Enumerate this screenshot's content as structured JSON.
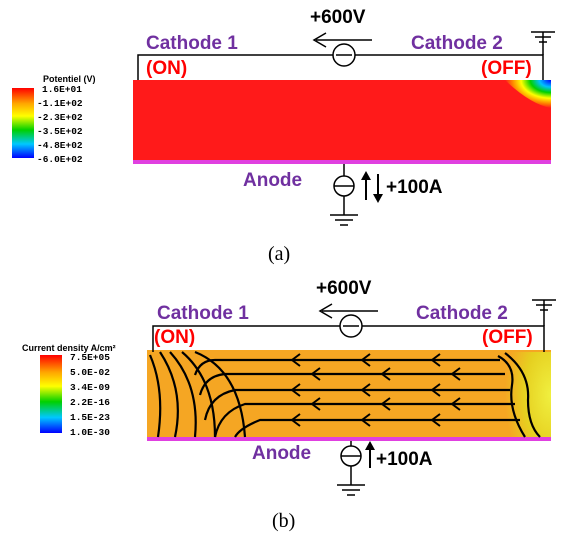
{
  "panel_a": {
    "voltage": "+600V",
    "cathode1": "Cathode 1",
    "cathode2": "Cathode 2",
    "cathode1_state": "(ON)",
    "cathode2_state": "(OFF)",
    "anode": "Anode",
    "current": "+100A",
    "caption": "(a)",
    "legend_title": "Potentiel (V)",
    "legend_ticks": [
      "1.6E+01",
      "-1.1E+02",
      "-2.3E+02",
      "-3.5E+02",
      "-4.8E+02",
      "-6.0E+02"
    ]
  },
  "panel_b": {
    "voltage": "+600V",
    "cathode1": "Cathode 1",
    "cathode2": "Cathode 2",
    "cathode1_state": "(ON)",
    "cathode2_state": "(OFF)",
    "anode": "Anode",
    "current": "+100A",
    "caption": "(b)",
    "legend_title": "Current density A/cm²",
    "legend_ticks": [
      "7.5E+05",
      "5.0E-02",
      "3.4E-09",
      "2.2E-16",
      "1.5E-23",
      "1.0E-30"
    ]
  },
  "colors": {
    "label_purple": "#7030a0",
    "state_red": "#ff0000",
    "potential_field": "#ff1a1a",
    "current_field": "#f5a623",
    "anode_strip": "#e040e0"
  }
}
